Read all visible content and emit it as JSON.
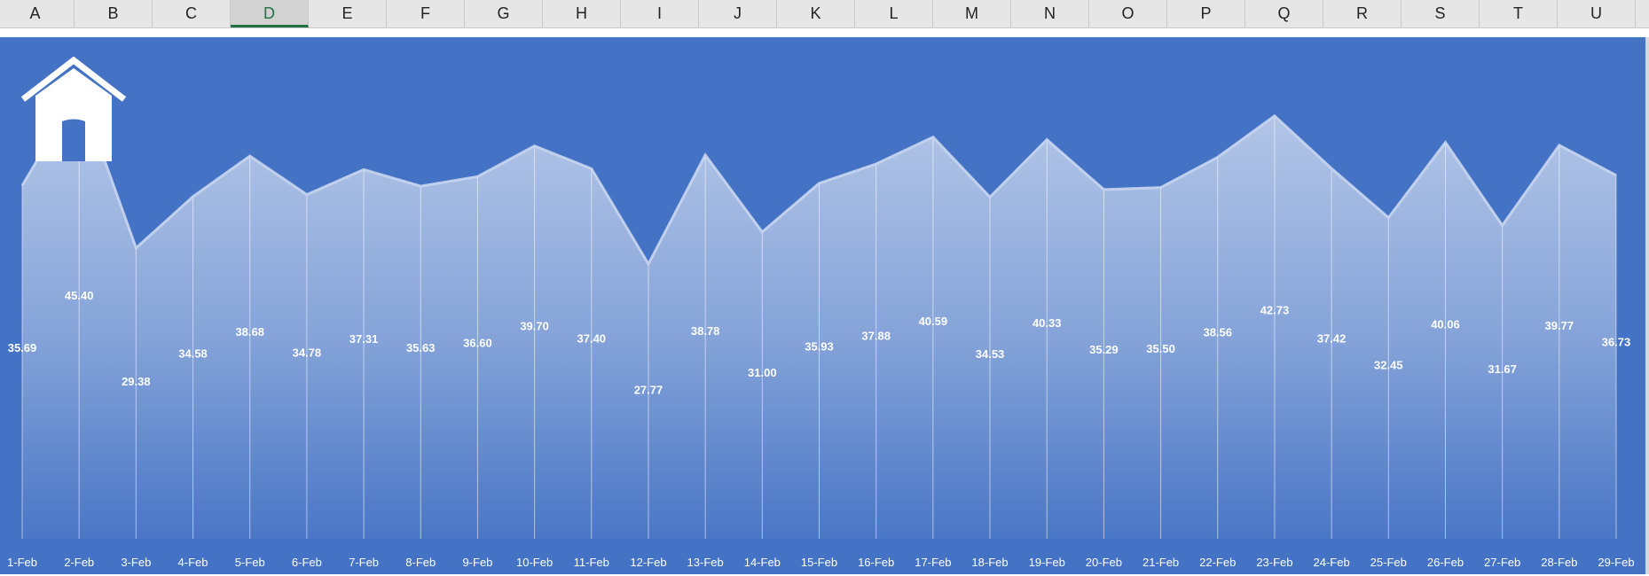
{
  "spreadsheet": {
    "columns": [
      "A",
      "B",
      "C",
      "D",
      "E",
      "F",
      "G",
      "H",
      "I",
      "J",
      "K",
      "L",
      "M",
      "N",
      "O",
      "P",
      "Q",
      "R",
      "S",
      "T",
      "U"
    ],
    "selected_column": "D"
  },
  "home_button": {
    "icon": "home-icon"
  },
  "colors": {
    "chart_background": "#4472c4",
    "area_fill_top": "#b4c4e8",
    "line": "#c9d6f0",
    "label": "#ffffff"
  },
  "chart_data": {
    "type": "area",
    "categories": [
      "1-Feb",
      "2-Feb",
      "3-Feb",
      "4-Feb",
      "5-Feb",
      "6-Feb",
      "7-Feb",
      "8-Feb",
      "9-Feb",
      "10-Feb",
      "11-Feb",
      "12-Feb",
      "13-Feb",
      "14-Feb",
      "15-Feb",
      "16-Feb",
      "17-Feb",
      "18-Feb",
      "19-Feb",
      "20-Feb",
      "21-Feb",
      "22-Feb",
      "23-Feb",
      "24-Feb",
      "25-Feb",
      "26-Feb",
      "27-Feb",
      "28-Feb",
      "29-Feb"
    ],
    "values": [
      35.69,
      45.4,
      29.38,
      34.58,
      38.68,
      34.78,
      37.31,
      35.63,
      36.6,
      39.7,
      37.4,
      27.77,
      38.78,
      31.0,
      35.93,
      37.88,
      40.59,
      34.53,
      40.33,
      35.29,
      35.5,
      38.56,
      42.73,
      37.42,
      32.45,
      40.06,
      31.67,
      39.77,
      36.73
    ],
    "value_labels": [
      "35.69",
      "45.40",
      "29.38",
      "34.58",
      "38.68",
      "34.78",
      "37.31",
      "35.63",
      "36.60",
      "39.70",
      "37.40",
      "27.77",
      "38.78",
      "31.00",
      "35.93",
      "37.88",
      "40.59",
      "34.53",
      "40.33",
      "35.29",
      "35.50",
      "38.56",
      "42.73",
      "37.42",
      "32.45",
      "40.06",
      "31.67",
      "39.77",
      "36.73"
    ],
    "title": "",
    "xlabel": "",
    "ylabel": "",
    "ylim": [
      0,
      48
    ],
    "grid": false,
    "legend": "none",
    "drop_lines": true
  }
}
